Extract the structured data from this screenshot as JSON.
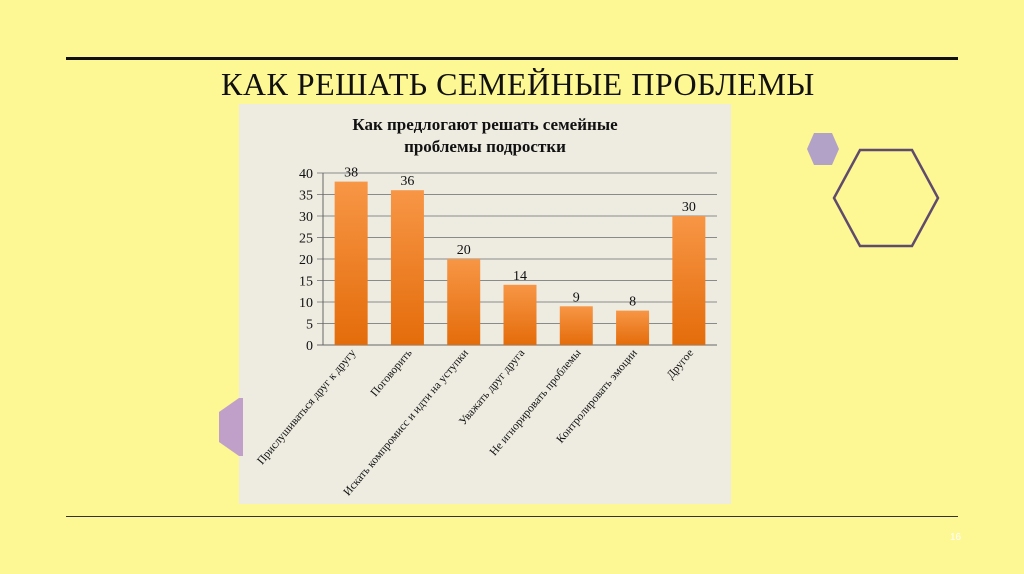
{
  "slide": {
    "title": "КАК РЕШАТЬ СЕМЕЙНЫЕ ПРОБЛЕМЫ",
    "page_number": "16"
  },
  "colors": {
    "background": "#fdf794",
    "panel": "#eeece1",
    "bar_light": "#f79646",
    "bar_dark": "#e46c0a",
    "hex_fill": "#b3a2c7",
    "hex_outline": "#5f4b6b",
    "side_shape": "#c0a0c8"
  },
  "chart_data": {
    "type": "bar",
    "title_lines": [
      "Как предлогают решать семейные",
      "проблемы подростки"
    ],
    "categories": [
      "Прислушиваться друг к другу",
      "Поговорить",
      "Искать компромисс и идти на уступки",
      "Уважать друг друга",
      "Не игнорировать проблемы",
      "Контролировать эмоции",
      "Другое"
    ],
    "values": [
      38,
      36,
      20,
      14,
      9,
      8,
      30
    ],
    "ylim": [
      0,
      40
    ],
    "yticks": [
      0,
      5,
      10,
      15,
      20,
      25,
      30,
      35,
      40
    ],
    "grid": true,
    "data_labels": true,
    "legend": "none"
  }
}
